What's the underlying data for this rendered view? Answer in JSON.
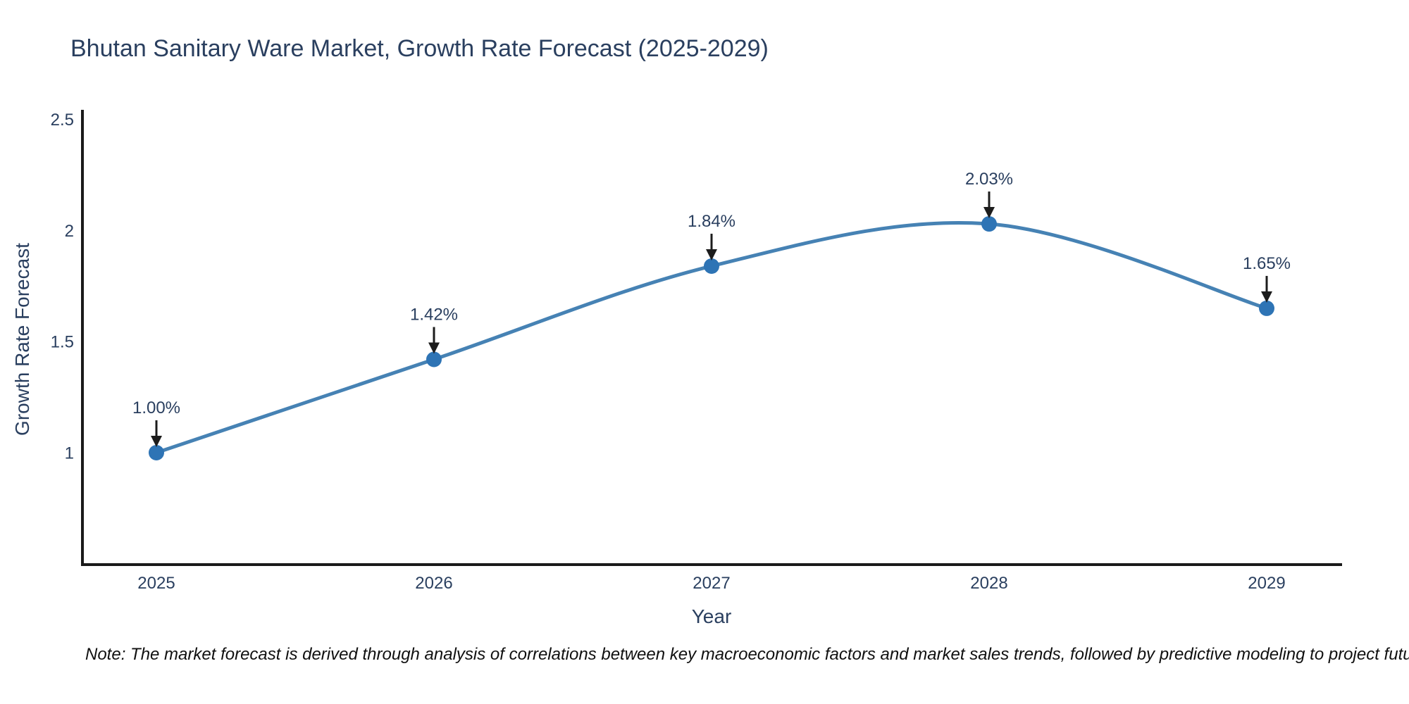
{
  "chart_data": {
    "type": "line",
    "title": "Bhutan Sanitary Ware Market, Growth Rate Forecast (2025-2029)",
    "xlabel": "Year",
    "ylabel": "Growth Rate Forecast",
    "x": [
      2025,
      2026,
      2027,
      2028,
      2029
    ],
    "series": [
      {
        "name": "Growth Rate Forecast",
        "values": [
          1.0,
          1.42,
          1.84,
          2.03,
          1.65
        ],
        "point_labels": [
          "1.00%",
          "1.42%",
          "1.84%",
          "2.03%",
          "1.65%"
        ]
      }
    ],
    "line_shape": "spline",
    "markers": true,
    "grid": false,
    "legend_position": "none",
    "yticks": [
      1,
      1.5,
      2,
      2.5
    ],
    "ytick_labels": [
      "1",
      "1.5",
      "2",
      "2.5"
    ],
    "ylim": [
      0.5,
      2.54
    ],
    "colors": {
      "line": "#4682b4",
      "marker": "#2e74b5",
      "arrow": "#1c1c1c",
      "text": "#2a3f5f",
      "axis": "#1a1a1a",
      "background": "#ffffff"
    }
  },
  "note": {
    "text": "Note: The market forecast is derived through analysis of correlations between key macroeconomic factors and market sales trends, followed by predictive modeling to project future sales"
  }
}
